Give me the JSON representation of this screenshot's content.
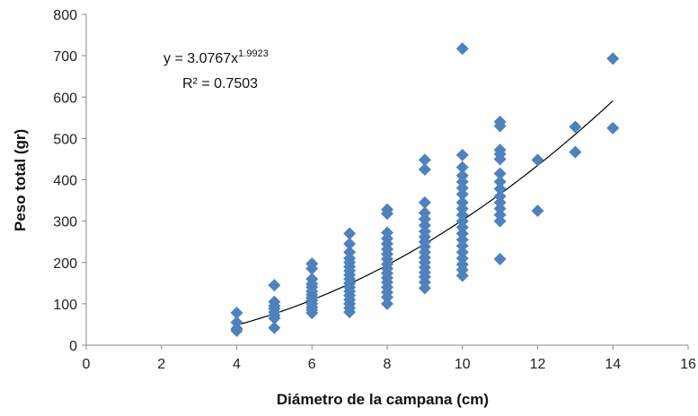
{
  "chart_data": {
    "type": "scatter",
    "title": "",
    "xlabel": "Diámetro de la campana (cm)",
    "ylabel": "Peso total (gr)",
    "xlim": [
      0,
      16
    ],
    "ylim": [
      0,
      800
    ],
    "xticks": [
      "0",
      "2",
      "4",
      "6",
      "8",
      "10",
      "12",
      "14",
      "16"
    ],
    "yticks": [
      "0",
      "100",
      "200",
      "300",
      "400",
      "500",
      "600",
      "700",
      "800"
    ],
    "grid": false,
    "marker_color": "#4F81BD",
    "trendline_color": "#000000",
    "trendline": {
      "type": "power",
      "coefficient": 3.0767,
      "exponent": 1.9923,
      "x_range": [
        4,
        14
      ],
      "equation_prefix": "y = 3.0767x",
      "equation_exponent": "1.9923",
      "r2_label": "R² = 0.7503"
    },
    "points": [
      {
        "x": 4,
        "y": 78
      },
      {
        "x": 4,
        "y": 55
      },
      {
        "x": 4,
        "y": 40
      },
      {
        "x": 4,
        "y": 35
      },
      {
        "x": 5,
        "y": 145
      },
      {
        "x": 5,
        "y": 105
      },
      {
        "x": 5,
        "y": 95
      },
      {
        "x": 5,
        "y": 88
      },
      {
        "x": 5,
        "y": 80
      },
      {
        "x": 5,
        "y": 72
      },
      {
        "x": 5,
        "y": 65
      },
      {
        "x": 5,
        "y": 42
      },
      {
        "x": 6,
        "y": 197
      },
      {
        "x": 6,
        "y": 185
      },
      {
        "x": 6,
        "y": 160
      },
      {
        "x": 6,
        "y": 148
      },
      {
        "x": 6,
        "y": 140
      },
      {
        "x": 6,
        "y": 130
      },
      {
        "x": 6,
        "y": 122
      },
      {
        "x": 6,
        "y": 115
      },
      {
        "x": 6,
        "y": 108
      },
      {
        "x": 6,
        "y": 100
      },
      {
        "x": 6,
        "y": 92
      },
      {
        "x": 6,
        "y": 85
      },
      {
        "x": 6,
        "y": 78
      },
      {
        "x": 7,
        "y": 270
      },
      {
        "x": 7,
        "y": 245
      },
      {
        "x": 7,
        "y": 225
      },
      {
        "x": 7,
        "y": 210
      },
      {
        "x": 7,
        "y": 200
      },
      {
        "x": 7,
        "y": 190
      },
      {
        "x": 7,
        "y": 180
      },
      {
        "x": 7,
        "y": 170
      },
      {
        "x": 7,
        "y": 160
      },
      {
        "x": 7,
        "y": 150
      },
      {
        "x": 7,
        "y": 140
      },
      {
        "x": 7,
        "y": 130
      },
      {
        "x": 7,
        "y": 120
      },
      {
        "x": 7,
        "y": 110
      },
      {
        "x": 7,
        "y": 100
      },
      {
        "x": 7,
        "y": 90
      },
      {
        "x": 7,
        "y": 80
      },
      {
        "x": 8,
        "y": 328
      },
      {
        "x": 8,
        "y": 318
      },
      {
        "x": 8,
        "y": 272
      },
      {
        "x": 8,
        "y": 258
      },
      {
        "x": 8,
        "y": 245
      },
      {
        "x": 8,
        "y": 232
      },
      {
        "x": 8,
        "y": 220
      },
      {
        "x": 8,
        "y": 208
      },
      {
        "x": 8,
        "y": 196
      },
      {
        "x": 8,
        "y": 185
      },
      {
        "x": 8,
        "y": 174
      },
      {
        "x": 8,
        "y": 163
      },
      {
        "x": 8,
        "y": 152
      },
      {
        "x": 8,
        "y": 140
      },
      {
        "x": 8,
        "y": 128
      },
      {
        "x": 8,
        "y": 116
      },
      {
        "x": 8,
        "y": 100
      },
      {
        "x": 9,
        "y": 448
      },
      {
        "x": 9,
        "y": 425
      },
      {
        "x": 9,
        "y": 345
      },
      {
        "x": 9,
        "y": 320
      },
      {
        "x": 9,
        "y": 305
      },
      {
        "x": 9,
        "y": 290
      },
      {
        "x": 9,
        "y": 275
      },
      {
        "x": 9,
        "y": 262
      },
      {
        "x": 9,
        "y": 250
      },
      {
        "x": 9,
        "y": 238
      },
      {
        "x": 9,
        "y": 225
      },
      {
        "x": 9,
        "y": 212
      },
      {
        "x": 9,
        "y": 200
      },
      {
        "x": 9,
        "y": 188
      },
      {
        "x": 9,
        "y": 176
      },
      {
        "x": 9,
        "y": 165
      },
      {
        "x": 9,
        "y": 152
      },
      {
        "x": 9,
        "y": 138
      },
      {
        "x": 10,
        "y": 717
      },
      {
        "x": 10,
        "y": 460
      },
      {
        "x": 10,
        "y": 430
      },
      {
        "x": 10,
        "y": 410
      },
      {
        "x": 10,
        "y": 395
      },
      {
        "x": 10,
        "y": 380
      },
      {
        "x": 10,
        "y": 365
      },
      {
        "x": 10,
        "y": 345
      },
      {
        "x": 10,
        "y": 330
      },
      {
        "x": 10,
        "y": 315
      },
      {
        "x": 10,
        "y": 300
      },
      {
        "x": 10,
        "y": 285
      },
      {
        "x": 10,
        "y": 270
      },
      {
        "x": 10,
        "y": 255
      },
      {
        "x": 10,
        "y": 240
      },
      {
        "x": 10,
        "y": 225
      },
      {
        "x": 10,
        "y": 210
      },
      {
        "x": 10,
        "y": 195
      },
      {
        "x": 10,
        "y": 182
      },
      {
        "x": 10,
        "y": 168
      },
      {
        "x": 11,
        "y": 540
      },
      {
        "x": 11,
        "y": 530
      },
      {
        "x": 11,
        "y": 472
      },
      {
        "x": 11,
        "y": 462
      },
      {
        "x": 11,
        "y": 450
      },
      {
        "x": 11,
        "y": 415
      },
      {
        "x": 11,
        "y": 395
      },
      {
        "x": 11,
        "y": 378
      },
      {
        "x": 11,
        "y": 360
      },
      {
        "x": 11,
        "y": 345
      },
      {
        "x": 11,
        "y": 330
      },
      {
        "x": 11,
        "y": 315
      },
      {
        "x": 11,
        "y": 300
      },
      {
        "x": 11,
        "y": 208
      },
      {
        "x": 12,
        "y": 448
      },
      {
        "x": 12,
        "y": 325
      },
      {
        "x": 13,
        "y": 528
      },
      {
        "x": 13,
        "y": 467
      },
      {
        "x": 14,
        "y": 693
      },
      {
        "x": 14,
        "y": 525
      }
    ]
  }
}
